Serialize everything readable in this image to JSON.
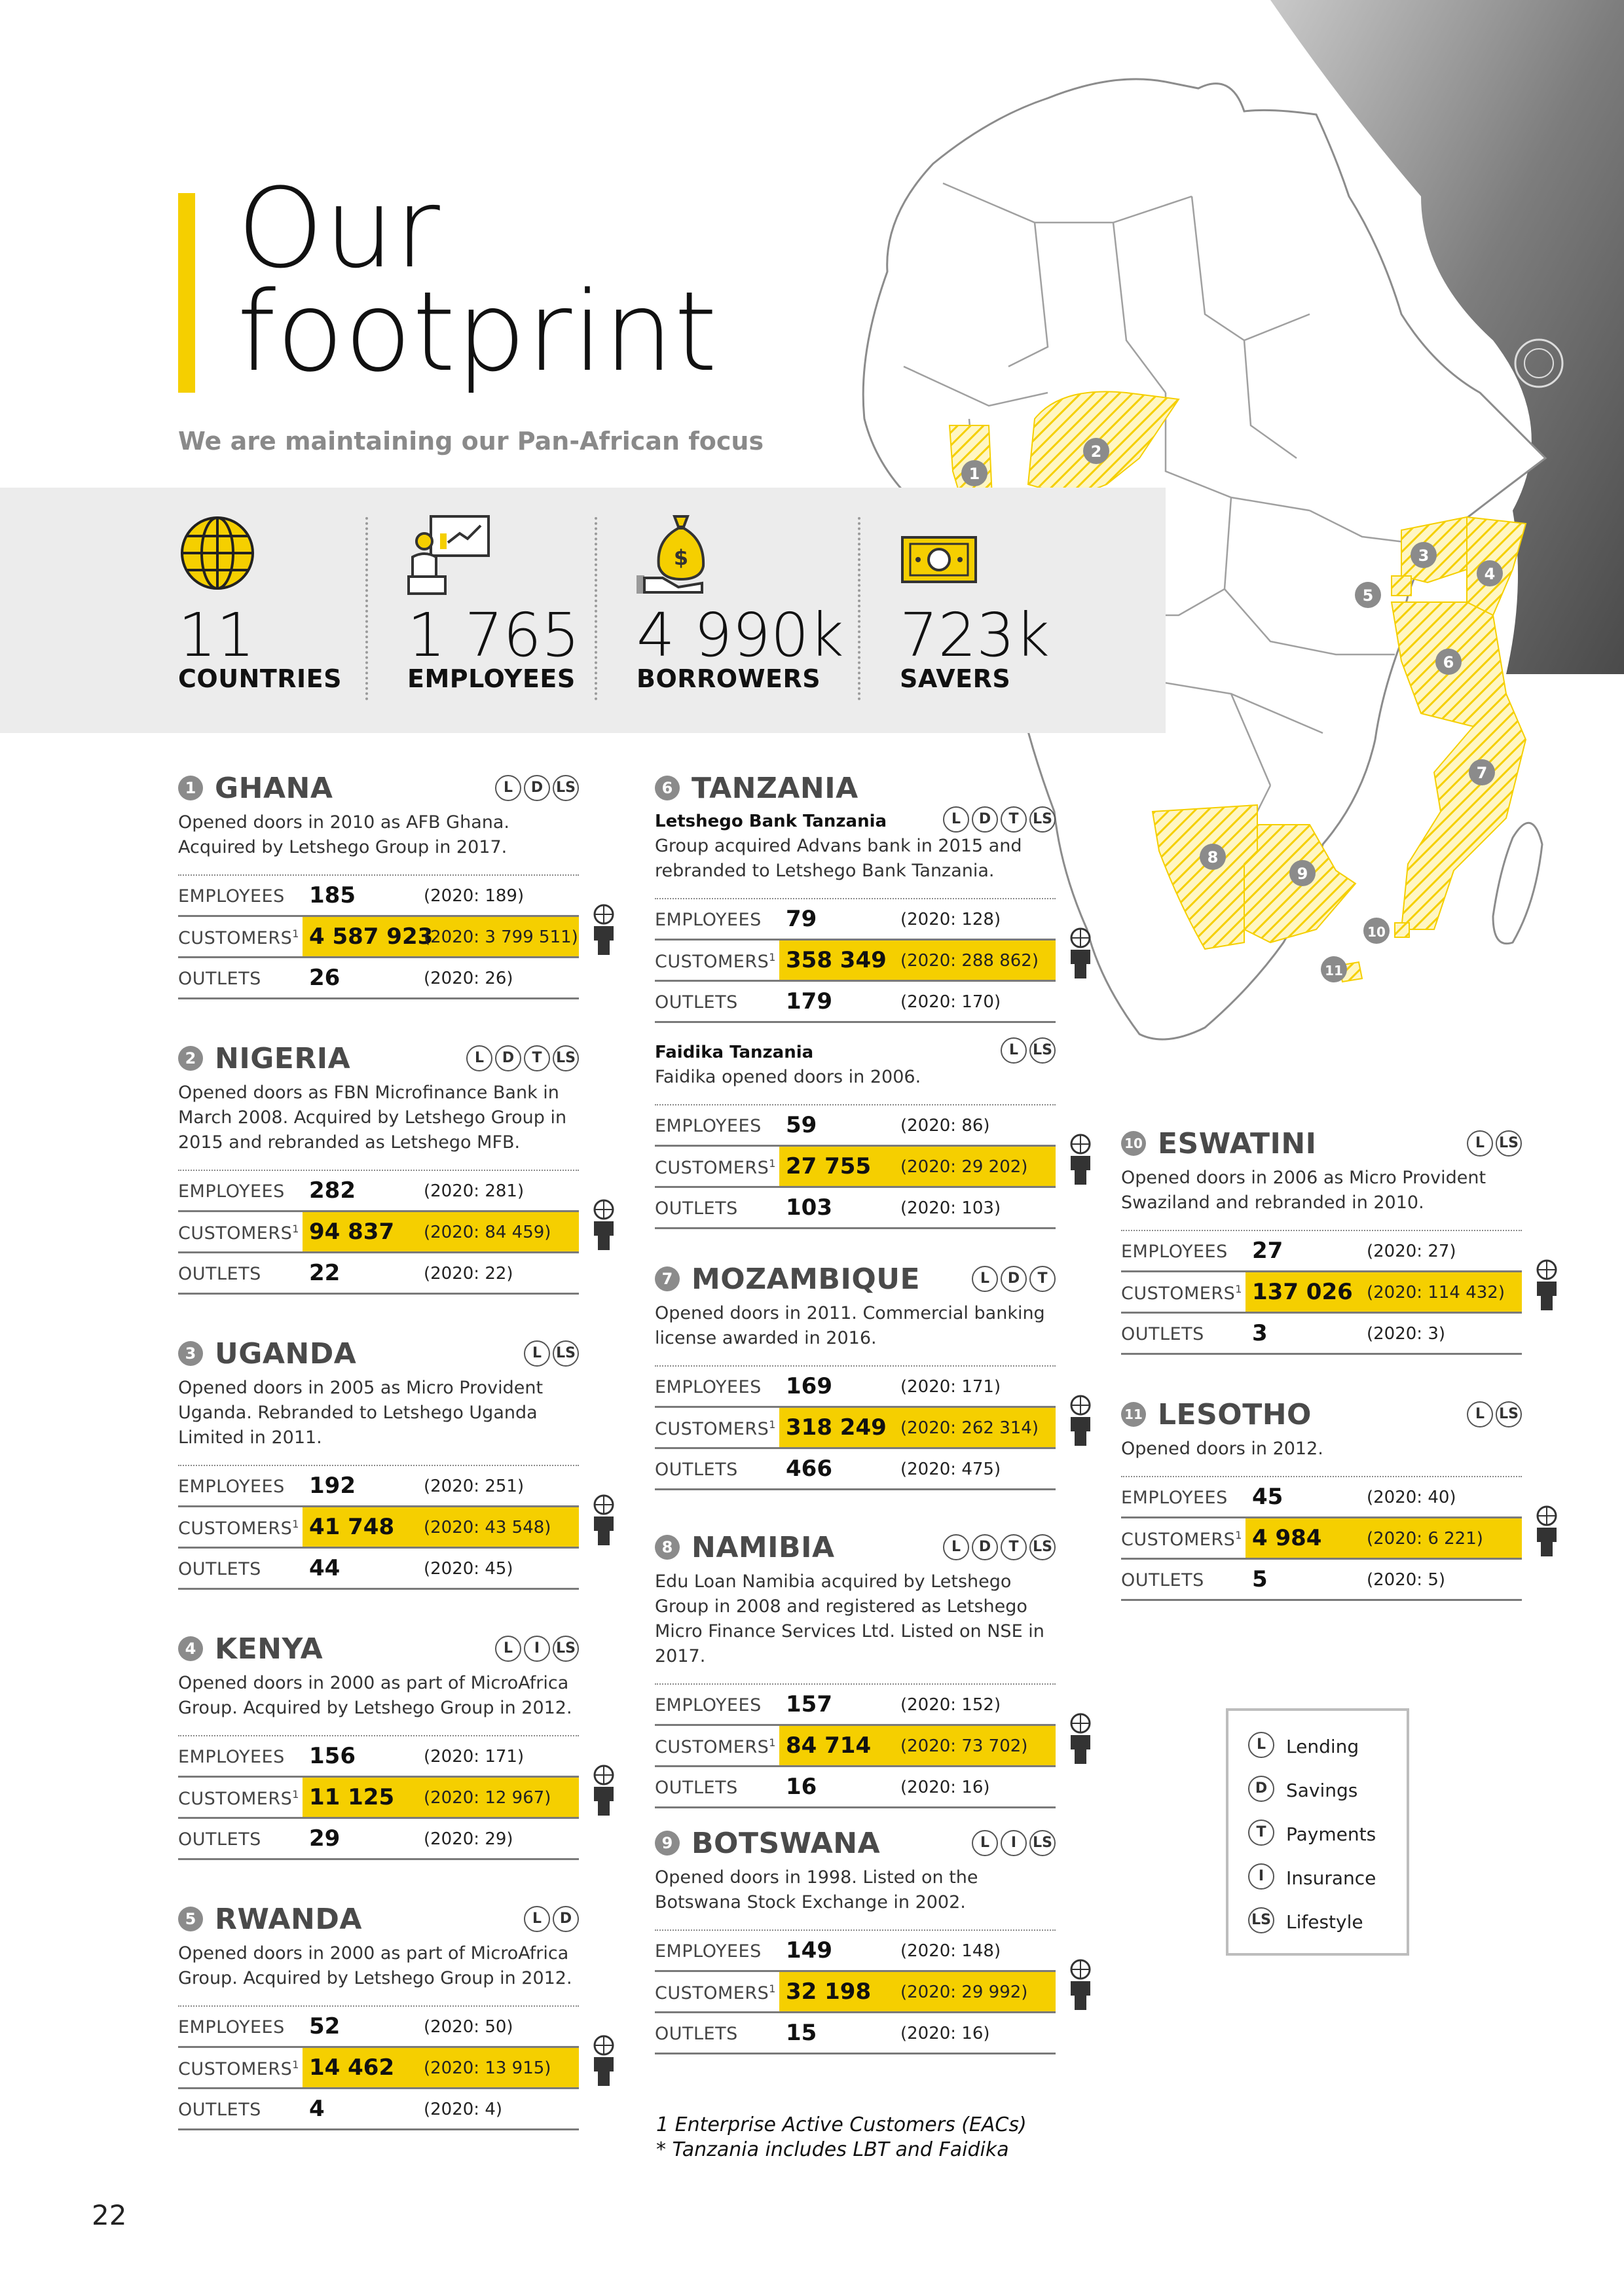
{
  "title": {
    "line1": "Our",
    "line2": "footprint",
    "subtitle": "We are maintaining our Pan-African focus"
  },
  "stats": [
    {
      "value": "11",
      "label": "COUNTRIES",
      "icon": "globe-icon"
    },
    {
      "value": "1 765",
      "label": "EMPLOYEES",
      "icon": "presenter-icon"
    },
    {
      "value": "4 990k",
      "label": "BORROWERS",
      "icon": "money-bag-icon"
    },
    {
      "value": "723k",
      "label": "SAVERS",
      "icon": "banknote-icon"
    }
  ],
  "row_labels": {
    "employees": "EMPLOYEES",
    "customers": "CUSTOMERS",
    "customers_sup": "1",
    "outlets": "OUTLETS"
  },
  "countries": {
    "ghana": {
      "num": "1",
      "name": "GHANA",
      "tags": [
        "L",
        "D",
        "LS"
      ],
      "desc": "Opened doors in 2010 as AFB Ghana. Acquired by Letshego Group in 2017.",
      "employees": "185",
      "employees_prev": "(2020: 189)",
      "customers": "4 587 923",
      "customers_prev": "(2020: 3 799 511)",
      "outlets": "26",
      "outlets_prev": "(2020: 26)"
    },
    "nigeria": {
      "num": "2",
      "name": "NIGERIA",
      "tags": [
        "L",
        "D",
        "T",
        "LS"
      ],
      "desc": "Opened doors as FBN Microfinance Bank in March 2008. Acquired by Letshego Group in 2015 and rebranded as Letshego MFB.",
      "employees": "282",
      "employees_prev": "(2020: 281)",
      "customers": "94 837",
      "customers_prev": "(2020: 84 459)",
      "outlets": "22",
      "outlets_prev": "(2020: 22)"
    },
    "uganda": {
      "num": "3",
      "name": "UGANDA",
      "tags": [
        "L",
        "LS"
      ],
      "desc": "Opened doors in 2005 as Micro Provident Uganda. Rebranded to Letshego Uganda Limited in 2011.",
      "employees": "192",
      "employees_prev": "(2020: 251)",
      "customers": "41 748",
      "customers_prev": "(2020: 43 548)",
      "outlets": "44",
      "outlets_prev": "(2020: 45)"
    },
    "kenya": {
      "num": "4",
      "name": "KENYA",
      "tags": [
        "L",
        "I",
        "LS"
      ],
      "desc": "Opened doors in 2000 as part of MicroAfrica Group. Acquired by Letshego Group in 2012.",
      "employees": "156",
      "employees_prev": "(2020: 171)",
      "customers": "11 125",
      "customers_prev": "(2020: 12 967)",
      "outlets": "29",
      "outlets_prev": "(2020: 29)"
    },
    "rwanda": {
      "num": "5",
      "name": "RWANDA",
      "tags": [
        "L",
        "D"
      ],
      "desc": "Opened doors in 2000 as part of MicroAfrica Group. Acquired by Letshego Group in 2012.",
      "employees": "52",
      "employees_prev": "(2020: 50)",
      "customers": "14 462",
      "customers_prev": "(2020: 13 915)",
      "outlets": "4",
      "outlets_prev": "(2020: 4)"
    },
    "tanzania": {
      "num": "6",
      "name": "TANZANIA",
      "lbt": {
        "name": "Letshego Bank Tanzania",
        "tags": [
          "L",
          "D",
          "T",
          "LS"
        ],
        "desc": "Group acquired Advans bank in 2015 and rebranded to Letshego Bank Tanzania.",
        "employees": "79",
        "employees_prev": "(2020: 128)",
        "customers": "358 349",
        "customers_prev": "(2020: 288 862)",
        "outlets": "179",
        "outlets_prev": "(2020: 170)"
      },
      "faidika": {
        "name": "Faidika Tanzania",
        "tags": [
          "L",
          "LS"
        ],
        "desc": "Faidika opened doors in 2006.",
        "employees": "59",
        "employees_prev": "(2020: 86)",
        "customers": "27 755",
        "customers_prev": "(2020: 29 202)",
        "outlets": "103",
        "outlets_prev": "(2020: 103)"
      }
    },
    "mozambique": {
      "num": "7",
      "name": "MOZAMBIQUE",
      "tags": [
        "L",
        "D",
        "T"
      ],
      "desc": "Opened doors in 2011. Commercial banking license awarded in 2016.",
      "employees": "169",
      "employees_prev": "(2020: 171)",
      "customers": "318 249",
      "customers_prev": "(2020: 262 314)",
      "outlets": "466",
      "outlets_prev": "(2020: 475)"
    },
    "namibia": {
      "num": "8",
      "name": "NAMIBIA",
      "tags": [
        "L",
        "D",
        "T",
        "LS"
      ],
      "desc": "Edu Loan Namibia acquired by Letshego Group in 2008 and registered as Letshego Micro Finance Services Ltd. Listed on NSE in 2017.",
      "employees": "157",
      "employees_prev": "(2020: 152)",
      "customers": "84 714",
      "customers_prev": "(2020: 73 702)",
      "outlets": "16",
      "outlets_prev": "(2020: 16)"
    },
    "botswana": {
      "num": "9",
      "name": "BOTSWANA",
      "tags": [
        "L",
        "I",
        "LS"
      ],
      "desc": "Opened doors in 1998. Listed on the Botswana Stock Exchange in 2002.",
      "employees": "149",
      "employees_prev": "(2020: 148)",
      "customers": "32 198",
      "customers_prev": "(2020: 29 992)",
      "outlets": "15",
      "outlets_prev": "(2020: 16)"
    },
    "eswatini": {
      "num": "10",
      "name": "ESWATINI",
      "tags": [
        "L",
        "LS"
      ],
      "desc": "Opened doors in 2006 as Micro Provident Swaziland and rebranded in 2010.",
      "employees": "27",
      "employees_prev": "(2020: 27)",
      "customers": "137 026",
      "customers_prev": "(2020: 114 432)",
      "outlets": "3",
      "outlets_prev": "(2020: 3)"
    },
    "lesotho": {
      "num": "11",
      "name": "LESOTHO",
      "tags": [
        "L",
        "LS"
      ],
      "desc": "Opened doors in 2012.",
      "employees": "45",
      "employees_prev": "(2020: 40)",
      "customers": "4 984",
      "customers_prev": "(2020: 6 221)",
      "outlets": "5",
      "outlets_prev": "(2020: 5)"
    }
  },
  "map_markers": [
    "1",
    "2",
    "3",
    "4",
    "5",
    "6",
    "7",
    "8",
    "9",
    "10",
    "11"
  ],
  "legend": [
    {
      "code": "L",
      "label": "Lending"
    },
    {
      "code": "D",
      "label": "Savings"
    },
    {
      "code": "T",
      "label": "Payments"
    },
    {
      "code": "I",
      "label": "Insurance"
    },
    {
      "code": "LS",
      "label": "Lifestyle"
    }
  ],
  "footnotes": {
    "line1": "1  Enterprise Active Customers (EACs)",
    "line2": "*  Tanzania includes LBT and Faidika"
  },
  "page_number": "22",
  "colors": {
    "accent": "#f5cf00",
    "badge": "#8b8b8b",
    "band": "#ececec"
  }
}
